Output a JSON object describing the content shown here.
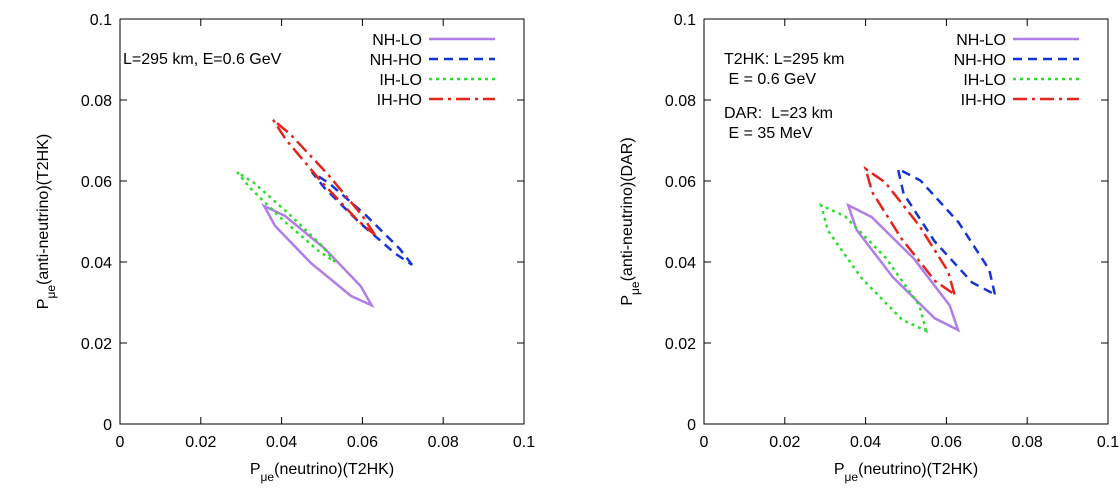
{
  "chart_data": [
    {
      "type": "line",
      "closed": true,
      "legend": "upper right",
      "xlabel": {
        "main": "P",
        "sub": "μe",
        "rest": "(neutrino)(T2HK)"
      },
      "ylabel": {
        "main": "P",
        "sub": "μe",
        "rest": "(anti-neutrino)(T2HK)"
      },
      "annotations": [
        "L=295 km, E=0.6 GeV"
      ],
      "xlim": [
        0,
        0.1
      ],
      "ylim": [
        0,
        0.1
      ],
      "xticks": [
        0,
        0.02,
        0.04,
        0.06,
        0.08,
        0.1
      ],
      "yticks": [
        0,
        0.02,
        0.04,
        0.06,
        0.08,
        0.1
      ],
      "series": [
        {
          "name": "NH-LO",
          "color": "#b07ee8",
          "dash": "solid",
          "x": [
            0.0623,
            0.0596,
            0.0507,
            0.0408,
            0.0357,
            0.0384,
            0.0473,
            0.0572
          ],
          "values": [
            0.0293,
            0.034,
            0.0433,
            0.0514,
            0.0538,
            0.0489,
            0.0397,
            0.0316
          ]
        },
        {
          "name": "NH-HO",
          "color": "#1533d6",
          "dash": "dashed",
          "x": [
            0.0723,
            0.0692,
            0.0607,
            0.0517,
            0.0475,
            0.0506,
            0.0591,
            0.0681
          ],
          "values": [
            0.0393,
            0.0433,
            0.0517,
            0.0595,
            0.0622,
            0.0583,
            0.0499,
            0.0421
          ]
        },
        {
          "name": "IH-LO",
          "color": "#2fdc2f",
          "dash": "dotted",
          "x": [
            0.0532,
            0.0502,
            0.0418,
            0.0331,
            0.029,
            0.0321,
            0.0404,
            0.0492
          ],
          "values": [
            0.04,
            0.0438,
            0.0519,
            0.0596,
            0.0622,
            0.0584,
            0.0503,
            0.0427
          ]
        },
        {
          "name": "IH-HO",
          "color": "#e3241b",
          "dash": "dashdot",
          "x": [
            0.0631,
            0.06,
            0.0514,
            0.0422,
            0.0379,
            0.041,
            0.0496,
            0.0588
          ],
          "values": [
            0.0467,
            0.0514,
            0.0617,
            0.0715,
            0.0751,
            0.0703,
            0.0601,
            0.0503
          ]
        }
      ]
    },
    {
      "type": "line",
      "closed": true,
      "legend": "upper right",
      "xlabel": {
        "main": "P",
        "sub": "μe",
        "rest": "(neutrino)(T2HK)"
      },
      "ylabel": {
        "main": "P",
        "sub": "μe",
        "rest": "(anti-neutrino)(DAR)"
      },
      "annotations": [
        "T2HK: L=295 km",
        " E = 0.6 GeV",
        "DAR:  L=23 km",
        " E = 35 MeV"
      ],
      "xlim": [
        0,
        0.1
      ],
      "ylim": [
        0,
        0.1
      ],
      "xticks": [
        0,
        0.02,
        0.04,
        0.06,
        0.08,
        0.1
      ],
      "yticks": [
        0,
        0.02,
        0.04,
        0.06,
        0.08,
        0.1
      ],
      "series": [
        {
          "name": "NH-LO",
          "color": "#b07ee8",
          "dash": "solid",
          "x": [
            0.0629,
            0.0608,
            0.0519,
            0.0415,
            0.0357,
            0.0378,
            0.0467,
            0.0571
          ],
          "values": [
            0.0232,
            0.0293,
            0.0409,
            0.0511,
            0.054,
            0.0479,
            0.0363,
            0.0261
          ]
        },
        {
          "name": "NH-HO",
          "color": "#1533d6",
          "dash": "dashed",
          "x": [
            0.072,
            0.0706,
            0.063,
            0.0536,
            0.048,
            0.0494,
            0.057,
            0.0664
          ],
          "values": [
            0.032,
            0.0381,
            0.0498,
            0.0601,
            0.063,
            0.0569,
            0.0452,
            0.0349
          ]
        },
        {
          "name": "IH-LO",
          "color": "#2fdc2f",
          "dash": "dotted",
          "x": [
            0.055,
            0.0533,
            0.045,
            0.0349,
            0.029,
            0.0307,
            0.039,
            0.0491
          ],
          "values": [
            0.023,
            0.0293,
            0.041,
            0.0513,
            0.054,
            0.0477,
            0.036,
            0.0257
          ]
        },
        {
          "name": "IH-HO",
          "color": "#e3241b",
          "dash": "dashdot",
          "x": [
            0.062,
            0.0604,
            0.0532,
            0.0448,
            0.04,
            0.0416,
            0.0488,
            0.0572
          ],
          "values": [
            0.032,
            0.0377,
            0.0491,
            0.0597,
            0.063,
            0.0573,
            0.0459,
            0.0353
          ]
        }
      ]
    }
  ]
}
